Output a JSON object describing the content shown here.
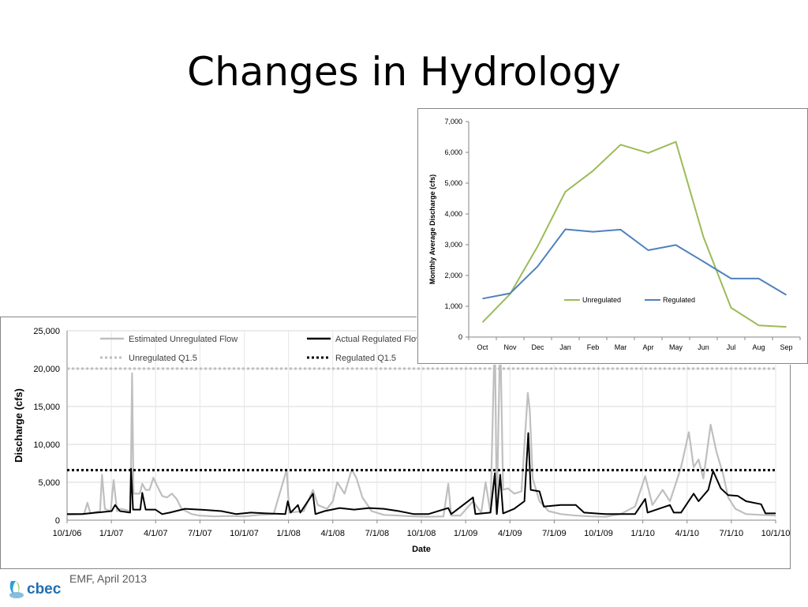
{
  "slide": {
    "title": "Changes in Hydrology",
    "footer": "EMF, April 2013",
    "logo_text": "cbec"
  },
  "colors": {
    "unregulated_main": "#bfbfbf",
    "regulated_main": "#000000",
    "unregulated_inset": "#9bbb59",
    "regulated_inset": "#4f81bd"
  },
  "chart_data": [
    {
      "type": "line",
      "xlabel": "Date",
      "ylabel": "Discharge (cfs)",
      "ylim": [
        0,
        25000
      ],
      "yticks": [
        0,
        5000,
        10000,
        15000,
        20000,
        25000
      ],
      "ytick_labels": [
        "0",
        "5,000",
        "10,000",
        "15,000",
        "20,000",
        "25,000"
      ],
      "xlim": [
        "2006-10-01",
        "2010-10-01"
      ],
      "xtick_labels": [
        "10/1/06",
        "1/1/07",
        "4/1/07",
        "7/1/07",
        "10/1/07",
        "1/1/08",
        "4/1/08",
        "7/1/08",
        "10/1/08",
        "1/1/09",
        "4/1/09",
        "7/1/09",
        "10/1/09",
        "1/1/10",
        "4/1/10",
        "7/1/10",
        "10/1/10"
      ],
      "grid": true,
      "legend": "top",
      "series": [
        {
          "name": "Estimated Unregulated Flow",
          "style": "solid",
          "color": "#bfbfbf",
          "points": [
            [
              "2006-10-01",
              700
            ],
            [
              "2006-11-05",
              800
            ],
            [
              "2006-11-12",
              2300
            ],
            [
              "2006-11-18",
              900
            ],
            [
              "2006-12-08",
              1200
            ],
            [
              "2006-12-12",
              6000
            ],
            [
              "2006-12-18",
              1500
            ],
            [
              "2006-12-30",
              1200
            ],
            [
              "2007-01-05",
              5300
            ],
            [
              "2007-01-12",
              1200
            ],
            [
              "2007-01-20",
              1500
            ],
            [
              "2007-02-08",
              1200
            ],
            [
              "2007-02-10",
              8000
            ],
            [
              "2007-02-12",
              19400
            ],
            [
              "2007-02-15",
              3500
            ],
            [
              "2007-02-28",
              3500
            ],
            [
              "2007-03-05",
              4800
            ],
            [
              "2007-03-12",
              4000
            ],
            [
              "2007-03-20",
              4000
            ],
            [
              "2007-03-28",
              5600
            ],
            [
              "2007-04-05",
              4500
            ],
            [
              "2007-04-15",
              3200
            ],
            [
              "2007-04-25",
              3000
            ],
            [
              "2007-05-05",
              3500
            ],
            [
              "2007-05-15",
              2800
            ],
            [
              "2007-05-25",
              1500
            ],
            [
              "2007-06-15",
              800
            ],
            [
              "2007-07-01",
              600
            ],
            [
              "2007-08-01",
              500
            ],
            [
              "2007-09-01",
              550
            ],
            [
              "2007-10-01",
              500
            ],
            [
              "2007-11-01",
              700
            ],
            [
              "2007-12-01",
              800
            ],
            [
              "2007-12-28",
              6700
            ],
            [
              "2008-01-02",
              1000
            ],
            [
              "2008-02-01",
              1200
            ],
            [
              "2008-02-20",
              4000
            ],
            [
              "2008-03-01",
              2000
            ],
            [
              "2008-03-20",
              1500
            ],
            [
              "2008-04-01",
              2500
            ],
            [
              "2008-04-10",
              5000
            ],
            [
              "2008-04-25",
              3500
            ],
            [
              "2008-05-10",
              6700
            ],
            [
              "2008-05-20",
              5500
            ],
            [
              "2008-06-01",
              3000
            ],
            [
              "2008-06-20",
              1200
            ],
            [
              "2008-07-15",
              700
            ],
            [
              "2008-08-15",
              600
            ],
            [
              "2008-09-15",
              500
            ],
            [
              "2008-10-15",
              450
            ],
            [
              "2008-11-15",
              500
            ],
            [
              "2008-11-25",
              4800
            ],
            [
              "2008-12-01",
              600
            ],
            [
              "2008-12-20",
              600
            ],
            [
              "2009-01-15",
              2500
            ],
            [
              "2009-02-01",
              1000
            ],
            [
              "2009-02-10",
              5000
            ],
            [
              "2009-02-20",
              1000
            ],
            [
              "2009-03-01",
              25000
            ],
            [
              "2009-03-05",
              1000
            ],
            [
              "2009-03-12",
              25000
            ],
            [
              "2009-03-18",
              4000
            ],
            [
              "2009-03-28",
              4200
            ],
            [
              "2009-04-10",
              3500
            ],
            [
              "2009-04-25",
              3800
            ],
            [
              "2009-05-08",
              16800
            ],
            [
              "2009-05-12",
              14500
            ],
            [
              "2009-05-18",
              5500
            ],
            [
              "2009-06-01",
              2500
            ],
            [
              "2009-06-20",
              1200
            ],
            [
              "2009-07-15",
              800
            ],
            [
              "2009-08-15",
              600
            ],
            [
              "2009-09-15",
              500
            ],
            [
              "2009-10-15",
              450
            ],
            [
              "2009-11-15",
              800
            ],
            [
              "2009-12-15",
              1800
            ],
            [
              "2010-01-05",
              5800
            ],
            [
              "2010-01-20",
              2000
            ],
            [
              "2010-02-10",
              4000
            ],
            [
              "2010-02-25",
              2500
            ],
            [
              "2010-03-10",
              5000
            ],
            [
              "2010-03-20",
              7000
            ],
            [
              "2010-04-05",
              11600
            ],
            [
              "2010-04-15",
              7000
            ],
            [
              "2010-04-25",
              8000
            ],
            [
              "2010-05-05",
              5500
            ],
            [
              "2010-05-20",
              12600
            ],
            [
              "2010-06-01",
              9000
            ],
            [
              "2010-06-15",
              6000
            ],
            [
              "2010-06-25",
              3000
            ],
            [
              "2010-07-10",
              1500
            ],
            [
              "2010-08-01",
              800
            ],
            [
              "2010-09-01",
              700
            ],
            [
              "2010-10-01",
              600
            ]
          ]
        },
        {
          "name": "Actual Regulated Flow",
          "style": "solid",
          "color": "#000000",
          "points": [
            [
              "2006-10-01",
              800
            ],
            [
              "2006-11-01",
              800
            ],
            [
              "2006-12-01",
              1000
            ],
            [
              "2007-01-01",
              1200
            ],
            [
              "2007-01-08",
              2000
            ],
            [
              "2007-01-18",
              1200
            ],
            [
              "2007-02-08",
              1000
            ],
            [
              "2007-02-10",
              6800
            ],
            [
              "2007-02-14",
              1400
            ],
            [
              "2007-03-01",
              1400
            ],
            [
              "2007-03-05",
              3600
            ],
            [
              "2007-03-12",
              1400
            ],
            [
              "2007-04-01",
              1400
            ],
            [
              "2007-04-15",
              800
            ],
            [
              "2007-05-01",
              1000
            ],
            [
              "2007-06-01",
              1500
            ],
            [
              "2007-07-01",
              1400
            ],
            [
              "2007-08-15",
              1200
            ],
            [
              "2007-09-15",
              800
            ],
            [
              "2007-10-15",
              1000
            ],
            [
              "2007-11-15",
              900
            ],
            [
              "2007-12-25",
              800
            ],
            [
              "2007-12-30",
              2500
            ],
            [
              "2008-01-05",
              1000
            ],
            [
              "2008-01-20",
              2000
            ],
            [
              "2008-01-25",
              1000
            ],
            [
              "2008-02-20",
              3500
            ],
            [
              "2008-02-25",
              800
            ],
            [
              "2008-03-15",
              1200
            ],
            [
              "2008-04-15",
              1600
            ],
            [
              "2008-05-15",
              1400
            ],
            [
              "2008-06-15",
              1600
            ],
            [
              "2008-07-15",
              1500
            ],
            [
              "2008-08-15",
              1200
            ],
            [
              "2008-09-15",
              800
            ],
            [
              "2008-10-15",
              800
            ],
            [
              "2008-11-25",
              1600
            ],
            [
              "2008-12-01",
              800
            ],
            [
              "2009-01-15",
              3000
            ],
            [
              "2009-01-20",
              800
            ],
            [
              "2009-02-20",
              1000
            ],
            [
              "2009-03-01",
              6200
            ],
            [
              "2009-03-05",
              800
            ],
            [
              "2009-03-12",
              6000
            ],
            [
              "2009-03-18",
              900
            ],
            [
              "2009-04-10",
              1500
            ],
            [
              "2009-05-01",
              2500
            ],
            [
              "2009-05-09",
              11500
            ],
            [
              "2009-05-14",
              4000
            ],
            [
              "2009-06-01",
              3800
            ],
            [
              "2009-06-10",
              1800
            ],
            [
              "2009-07-15",
              2000
            ],
            [
              "2009-08-15",
              2000
            ],
            [
              "2009-09-01",
              1000
            ],
            [
              "2009-10-15",
              800
            ],
            [
              "2009-11-15",
              800
            ],
            [
              "2009-12-15",
              800
            ],
            [
              "2010-01-05",
              2800
            ],
            [
              "2010-01-10",
              1000
            ],
            [
              "2010-02-25",
              2000
            ],
            [
              "2010-03-05",
              1000
            ],
            [
              "2010-03-20",
              1000
            ],
            [
              "2010-04-15",
              3500
            ],
            [
              "2010-04-25",
              2500
            ],
            [
              "2010-05-15",
              4000
            ],
            [
              "2010-05-25",
              6500
            ],
            [
              "2010-06-10",
              4200
            ],
            [
              "2010-06-25",
              3300
            ],
            [
              "2010-07-15",
              3200
            ],
            [
              "2010-08-01",
              2500
            ],
            [
              "2010-09-01",
              2100
            ],
            [
              "2010-09-10",
              900
            ],
            [
              "2010-10-01",
              900
            ]
          ]
        },
        {
          "name": "Unregulated Q1.5",
          "style": "dotted",
          "color": "#bfbfbf",
          "constant": 20000
        },
        {
          "name": "Regulated Q1.5",
          "style": "dotted",
          "color": "#000000",
          "constant": 6600
        }
      ]
    },
    {
      "type": "line",
      "xlabel": "",
      "ylabel": "Monthly Average Discharge    (cfs)",
      "ylim": [
        0,
        7000
      ],
      "yticks": [
        0,
        1000,
        2000,
        3000,
        4000,
        5000,
        6000,
        7000
      ],
      "ytick_labels": [
        "0",
        "1,000",
        "2,000",
        "3,000",
        "4,000",
        "5,000",
        "6,000",
        "7,000"
      ],
      "categories": [
        "Oct",
        "Nov",
        "Dec",
        "Jan",
        "Feb",
        "Mar",
        "Apr",
        "May",
        "Jun",
        "Jul",
        "Aug",
        "Sep"
      ],
      "grid": false,
      "legend": "inside-bottom",
      "series": [
        {
          "name": "Unregulated",
          "color": "#9bbb59",
          "values": [
            480,
            1400,
            2950,
            4720,
            5400,
            6250,
            5980,
            6340,
            3250,
            950,
            380,
            330
          ]
        },
        {
          "name": "Regulated",
          "color": "#4f81bd",
          "values": [
            1250,
            1420,
            2300,
            3500,
            3420,
            3490,
            2820,
            2990,
            2450,
            1900,
            1900,
            1370
          ]
        }
      ]
    }
  ]
}
